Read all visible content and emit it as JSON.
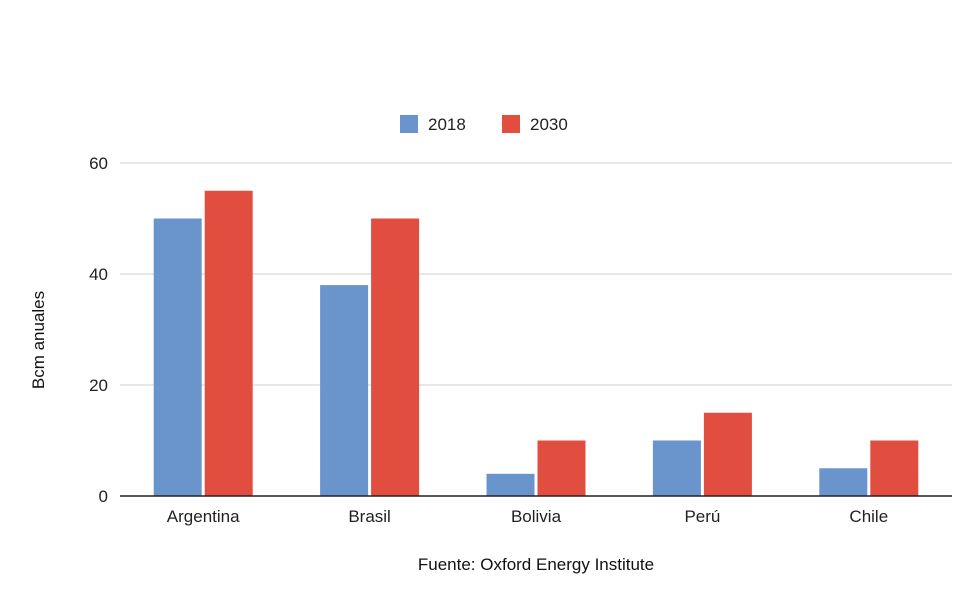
{
  "chart_data": {
    "type": "bar",
    "title": "",
    "xlabel": "Fuente: Oxford Energy Institute",
    "ylabel": "Bcm anuales",
    "categories": [
      "Argentina",
      "Brasil",
      "Bolivia",
      "Perú",
      "Chile"
    ],
    "series": [
      {
        "name": "2018",
        "color": "#6a95cc",
        "values": [
          50,
          38,
          4,
          10,
          5
        ]
      },
      {
        "name": "2030",
        "color": "#e14e40",
        "values": [
          55,
          50,
          10,
          15,
          10
        ]
      }
    ],
    "ylim": [
      0,
      60
    ],
    "yticks": [
      0,
      20,
      40,
      60
    ],
    "grid": true,
    "legend_position": "top-center"
  }
}
